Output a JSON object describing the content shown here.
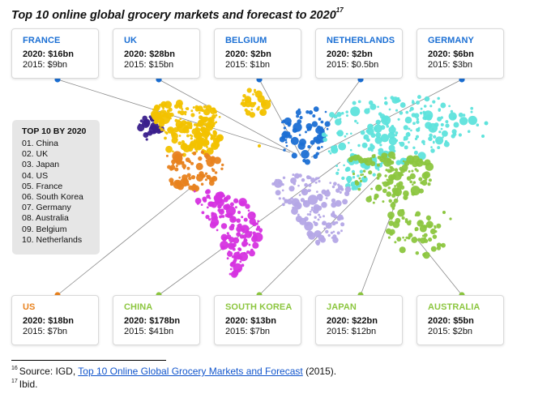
{
  "title": "Top 10 online global grocery markets and forecast to 2020",
  "title_note": "17",
  "colors": {
    "France": "#3a1f8c",
    "UK": "#f2c200",
    "Belgium": "#f2c200",
    "Netherlands": "#1b6fd4",
    "Germany": "#1b6fd4",
    "US": "#e8821e",
    "China": "#5ee3dc",
    "South Korea": "#8cc63f",
    "Japan": "#8cc63f",
    "Australia": "#8cc63f",
    "SouthAmerica": "#d633e0",
    "Africa": "#b4a7e6"
  },
  "top10": {
    "header": "TOP 10 BY 2020",
    "items": [
      "01. China",
      "02. UK",
      "03. Japan",
      "04. US",
      "05. France",
      "06. South Korea",
      "07. Germany",
      "08. Australia",
      "09. Belgium",
      "10. Netherlands"
    ]
  },
  "cards": [
    {
      "name": "FRANCE",
      "v2020": "2020: $16bn",
      "v2015": "2015: $9bn",
      "color": "#1b6fd4"
    },
    {
      "name": "UK",
      "v2020": "2020: $28bn",
      "v2015": "2015: $15bn",
      "color": "#1b6fd4"
    },
    {
      "name": "BELGIUM",
      "v2020": "2020: $2bn",
      "v2015": "2015: $1bn",
      "color": "#1b6fd4"
    },
    {
      "name": "NETHERLANDS",
      "v2020": "2020: $2bn",
      "v2015": "2015: $0.5bn",
      "color": "#1b6fd4"
    },
    {
      "name": "GERMANY",
      "v2020": "2020: $6bn",
      "v2015": "2015: $3bn",
      "color": "#1b6fd4"
    },
    {
      "name": "US",
      "v2020": "2020: $18bn",
      "v2015": "2015: $7bn",
      "color": "#e8821e"
    },
    {
      "name": "CHINA",
      "v2020": "2020: $178bn",
      "v2015": "2015: $41bn",
      "color": "#8cc63f"
    },
    {
      "name": "SOUTH KOREA",
      "v2020": "2020: $13bn",
      "v2015": "2015: $7bn",
      "color": "#8cc63f"
    },
    {
      "name": "JAPAN",
      "v2020": "2020: $22bn",
      "v2015": "2015: $12bn",
      "color": "#8cc63f"
    },
    {
      "name": "AUSTRALIA",
      "v2020": "2020: $5bn",
      "v2015": "2015: $2bn",
      "color": "#8cc63f"
    }
  ],
  "footnotes": {
    "n16": "16",
    "src_prefix": "Source: IGD, ",
    "src_link": "Top 10 Online Global Grocery Markets and Forecast",
    "src_suffix": " (2015).",
    "n17": "17",
    "ibid": "Ibid."
  },
  "chart_data": {
    "type": "table",
    "title": "Top 10 online global grocery markets and forecast to 2020",
    "categories": [
      "France",
      "UK",
      "Belgium",
      "Netherlands",
      "Germany",
      "US",
      "China",
      "South Korea",
      "Japan",
      "Australia"
    ],
    "series": [
      {
        "name": "2020",
        "values": [
          16,
          28,
          2,
          2,
          6,
          18,
          178,
          13,
          22,
          5
        ]
      },
      {
        "name": "2015",
        "values": [
          9,
          15,
          1,
          0.5,
          3,
          7,
          41,
          7,
          12,
          2
        ]
      }
    ],
    "ranking_2020": [
      "China",
      "UK",
      "Japan",
      "US",
      "France",
      "South Korea",
      "Germany",
      "Australia",
      "Belgium",
      "Netherlands"
    ]
  }
}
